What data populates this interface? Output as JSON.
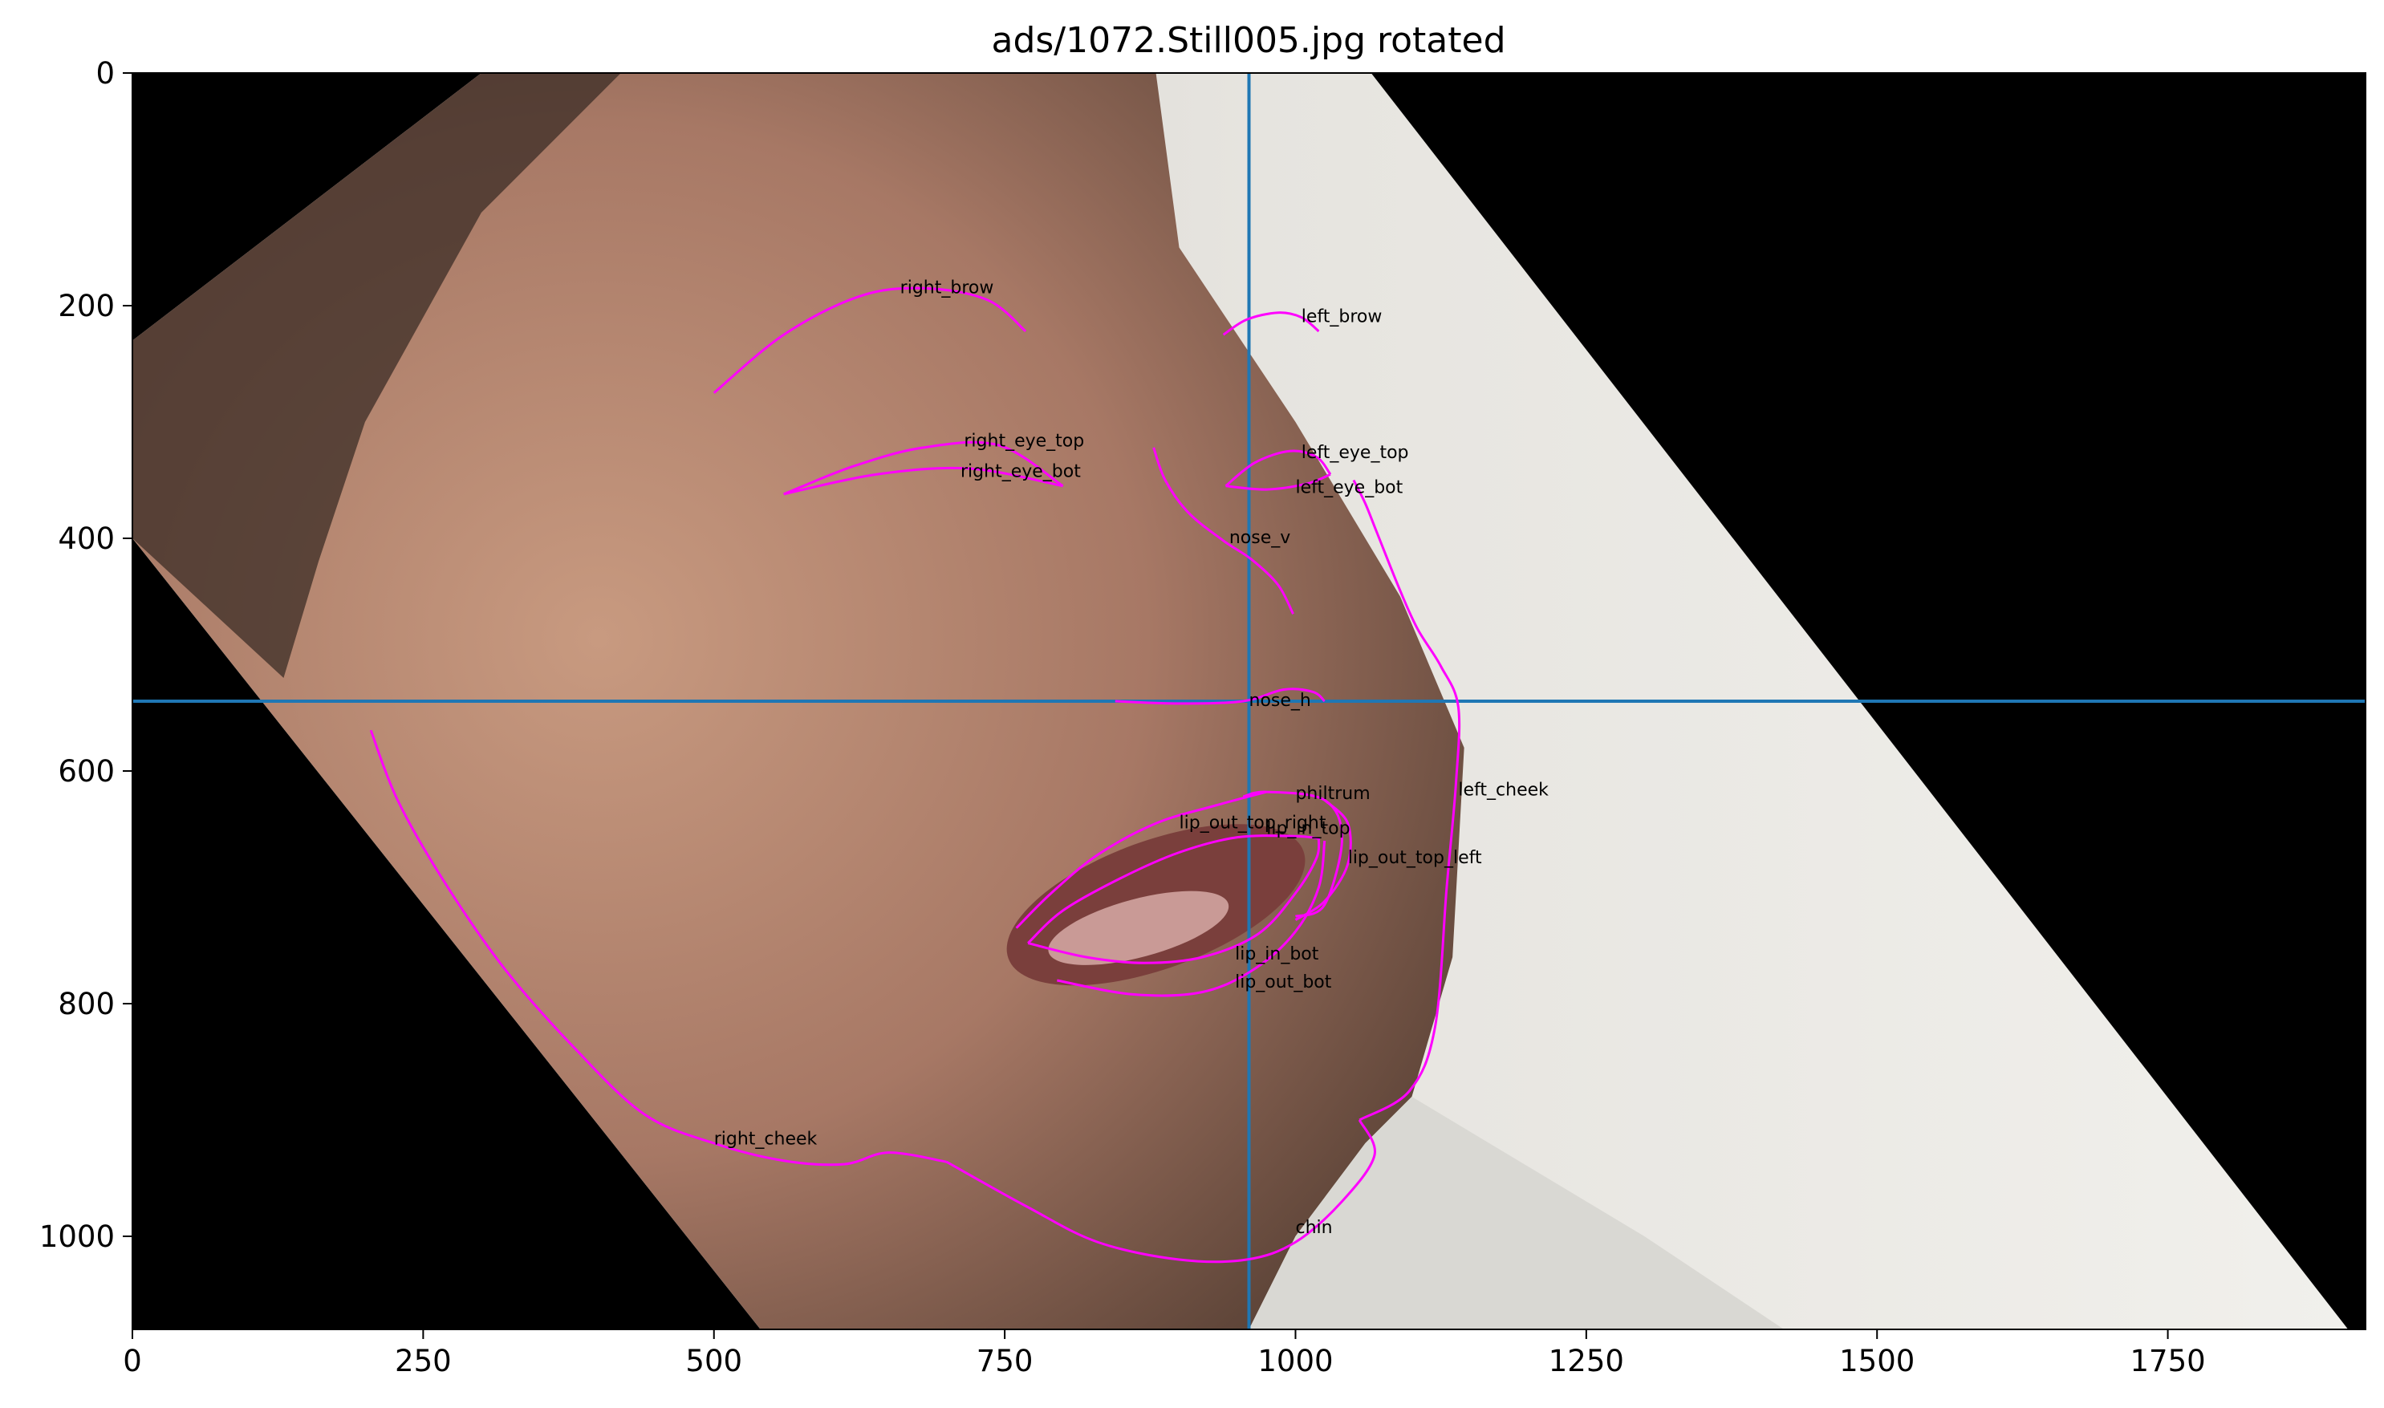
{
  "chart_data": {
    "type": "image",
    "title": "ads/1072.Still005.jpg rotated",
    "xlim": [
      0,
      1920
    ],
    "ylim": [
      1080,
      0
    ],
    "xticks": [
      0,
      250,
      500,
      750,
      1000,
      1250,
      1500,
      1750
    ],
    "yticks": [
      0,
      200,
      400,
      600,
      800,
      1000
    ],
    "tick_labels_x": [
      "0",
      "250",
      "500",
      "750",
      "1000",
      "1250",
      "1500",
      "1750"
    ],
    "tick_labels_y": [
      "0",
      "200",
      "400",
      "600",
      "800",
      "1000"
    ],
    "reference_lines": {
      "vertical_x": 960,
      "horizontal_y": 540,
      "color": "#1f77b4"
    },
    "landmark_color": "#ff00ff",
    "image_region": [
      [
        300,
        0
      ],
      [
        1065,
        0
      ],
      [
        1905,
        1080
      ],
      [
        540,
        1080
      ],
      [
        0,
        400
      ],
      [
        0,
        230
      ]
    ],
    "landmarks": [
      {
        "name": "right_brow",
        "label_pos": [
          660,
          185
        ],
        "points": [
          [
            500,
            275
          ],
          [
            560,
            225
          ],
          [
            625,
            192
          ],
          [
            680,
            185
          ],
          [
            735,
            195
          ],
          [
            768,
            222
          ]
        ]
      },
      {
        "name": "left_brow",
        "label_pos": [
          1005,
          210
        ],
        "points": [
          [
            938,
            225
          ],
          [
            958,
            212
          ],
          [
            985,
            206
          ],
          [
            1005,
            210
          ],
          [
            1020,
            222
          ]
        ]
      },
      {
        "name": "right_eye_top",
        "label_pos": [
          715,
          317
        ],
        "points": [
          [
            560,
            362
          ],
          [
            620,
            338
          ],
          [
            680,
            322
          ],
          [
            745,
            320
          ],
          [
            800,
            355
          ]
        ]
      },
      {
        "name": "right_eye_bot",
        "label_pos": [
          712,
          343
        ],
        "points": [
          [
            560,
            362
          ],
          [
            640,
            345
          ],
          [
            720,
            340
          ],
          [
            800,
            355
          ]
        ]
      },
      {
        "name": "left_eye_top",
        "label_pos": [
          1005,
          327
        ],
        "points": [
          [
            940,
            355
          ],
          [
            965,
            335
          ],
          [
            995,
            325
          ],
          [
            1018,
            330
          ],
          [
            1030,
            345
          ]
        ]
      },
      {
        "name": "left_eye_bot",
        "label_pos": [
          1000,
          357
        ],
        "points": [
          [
            940,
            355
          ],
          [
            975,
            358
          ],
          [
            1010,
            353
          ],
          [
            1030,
            345
          ]
        ]
      },
      {
        "name": "nose_v",
        "label_pos": [
          943,
          400
        ],
        "points": [
          [
            878,
            322
          ],
          [
            888,
            350
          ],
          [
            908,
            378
          ],
          [
            938,
            402
          ],
          [
            962,
            418
          ],
          [
            985,
            440
          ],
          [
            998,
            465
          ]
        ]
      },
      {
        "name": "nose_h",
        "label_pos": [
          960,
          540
        ],
        "points": [
          [
            845,
            540
          ],
          [
            900,
            542
          ],
          [
            955,
            540
          ],
          [
            990,
            530
          ],
          [
            1015,
            532
          ],
          [
            1025,
            540
          ]
        ]
      },
      {
        "name": "philtrum",
        "label_pos": [
          1000,
          620
        ],
        "points": [
          [
            955,
            622
          ],
          [
            975,
            618
          ],
          [
            1025,
            625
          ],
          [
            1040,
            658
          ],
          [
            1025,
            715
          ],
          [
            1000,
            725
          ]
        ]
      },
      {
        "name": "lip_out_top_right",
        "label_pos": [
          900,
          645
        ],
        "points": [
          [
            760,
            735
          ],
          [
            790,
            705
          ],
          [
            830,
            672
          ],
          [
            880,
            645
          ],
          [
            930,
            630
          ],
          [
            975,
            618
          ]
        ]
      },
      {
        "name": "lip_in_top",
        "label_pos": [
          975,
          650
        ],
        "points": [
          [
            770,
            748
          ],
          [
            800,
            720
          ],
          [
            850,
            692
          ],
          [
            900,
            670
          ],
          [
            950,
            657
          ],
          [
            1000,
            656
          ],
          [
            1020,
            658
          ]
        ]
      },
      {
        "name": "lip_out_top_left",
        "label_pos": [
          1045,
          675
        ],
        "points": [
          [
            1025,
            625
          ],
          [
            1045,
            645
          ],
          [
            1045,
            680
          ],
          [
            1025,
            712
          ],
          [
            1000,
            728
          ]
        ]
      },
      {
        "name": "lip_in_bot",
        "label_pos": [
          948,
          758
        ],
        "points": [
          [
            770,
            748
          ],
          [
            820,
            760
          ],
          [
            870,
            765
          ],
          [
            920,
            760
          ],
          [
            968,
            740
          ],
          [
            1000,
            705
          ],
          [
            1018,
            675
          ],
          [
            1020,
            658
          ]
        ]
      },
      {
        "name": "lip_out_bot",
        "label_pos": [
          948,
          782
        ],
        "points": [
          [
            795,
            780
          ],
          [
            860,
            792
          ],
          [
            920,
            790
          ],
          [
            965,
            770
          ],
          [
            1000,
            738
          ],
          [
            1020,
            700
          ],
          [
            1025,
            660
          ]
        ]
      },
      {
        "name": "left_cheek",
        "label_pos": [
          1140,
          617
        ],
        "points": [
          [
            1050,
            350
          ],
          [
            1060,
            370
          ],
          [
            1070,
            395
          ],
          [
            1090,
            445
          ],
          [
            1105,
            478
          ],
          [
            1125,
            510
          ],
          [
            1140,
            545
          ],
          [
            1138,
            610
          ],
          [
            1130,
            700
          ],
          [
            1120,
            820
          ],
          [
            1098,
            875
          ],
          [
            1055,
            900
          ]
        ]
      },
      {
        "name": "right_cheek",
        "label_pos": [
          500,
          917
        ],
        "points": [
          [
            205,
            565
          ],
          [
            228,
            625
          ],
          [
            268,
            695
          ],
          [
            320,
            770
          ],
          [
            380,
            838
          ],
          [
            440,
            895
          ],
          [
            500,
            920
          ],
          [
            560,
            935
          ],
          [
            612,
            938
          ],
          [
            650,
            928
          ],
          [
            700,
            936
          ]
        ]
      },
      {
        "name": "chin",
        "label_pos": [
          1000,
          993
        ],
        "points": [
          [
            700,
            936
          ],
          [
            770,
            975
          ],
          [
            830,
            1005
          ],
          [
            900,
            1020
          ],
          [
            958,
            1020
          ],
          [
            1000,
            1005
          ],
          [
            1040,
            970
          ],
          [
            1068,
            930
          ],
          [
            1055,
            900
          ]
        ]
      }
    ]
  }
}
